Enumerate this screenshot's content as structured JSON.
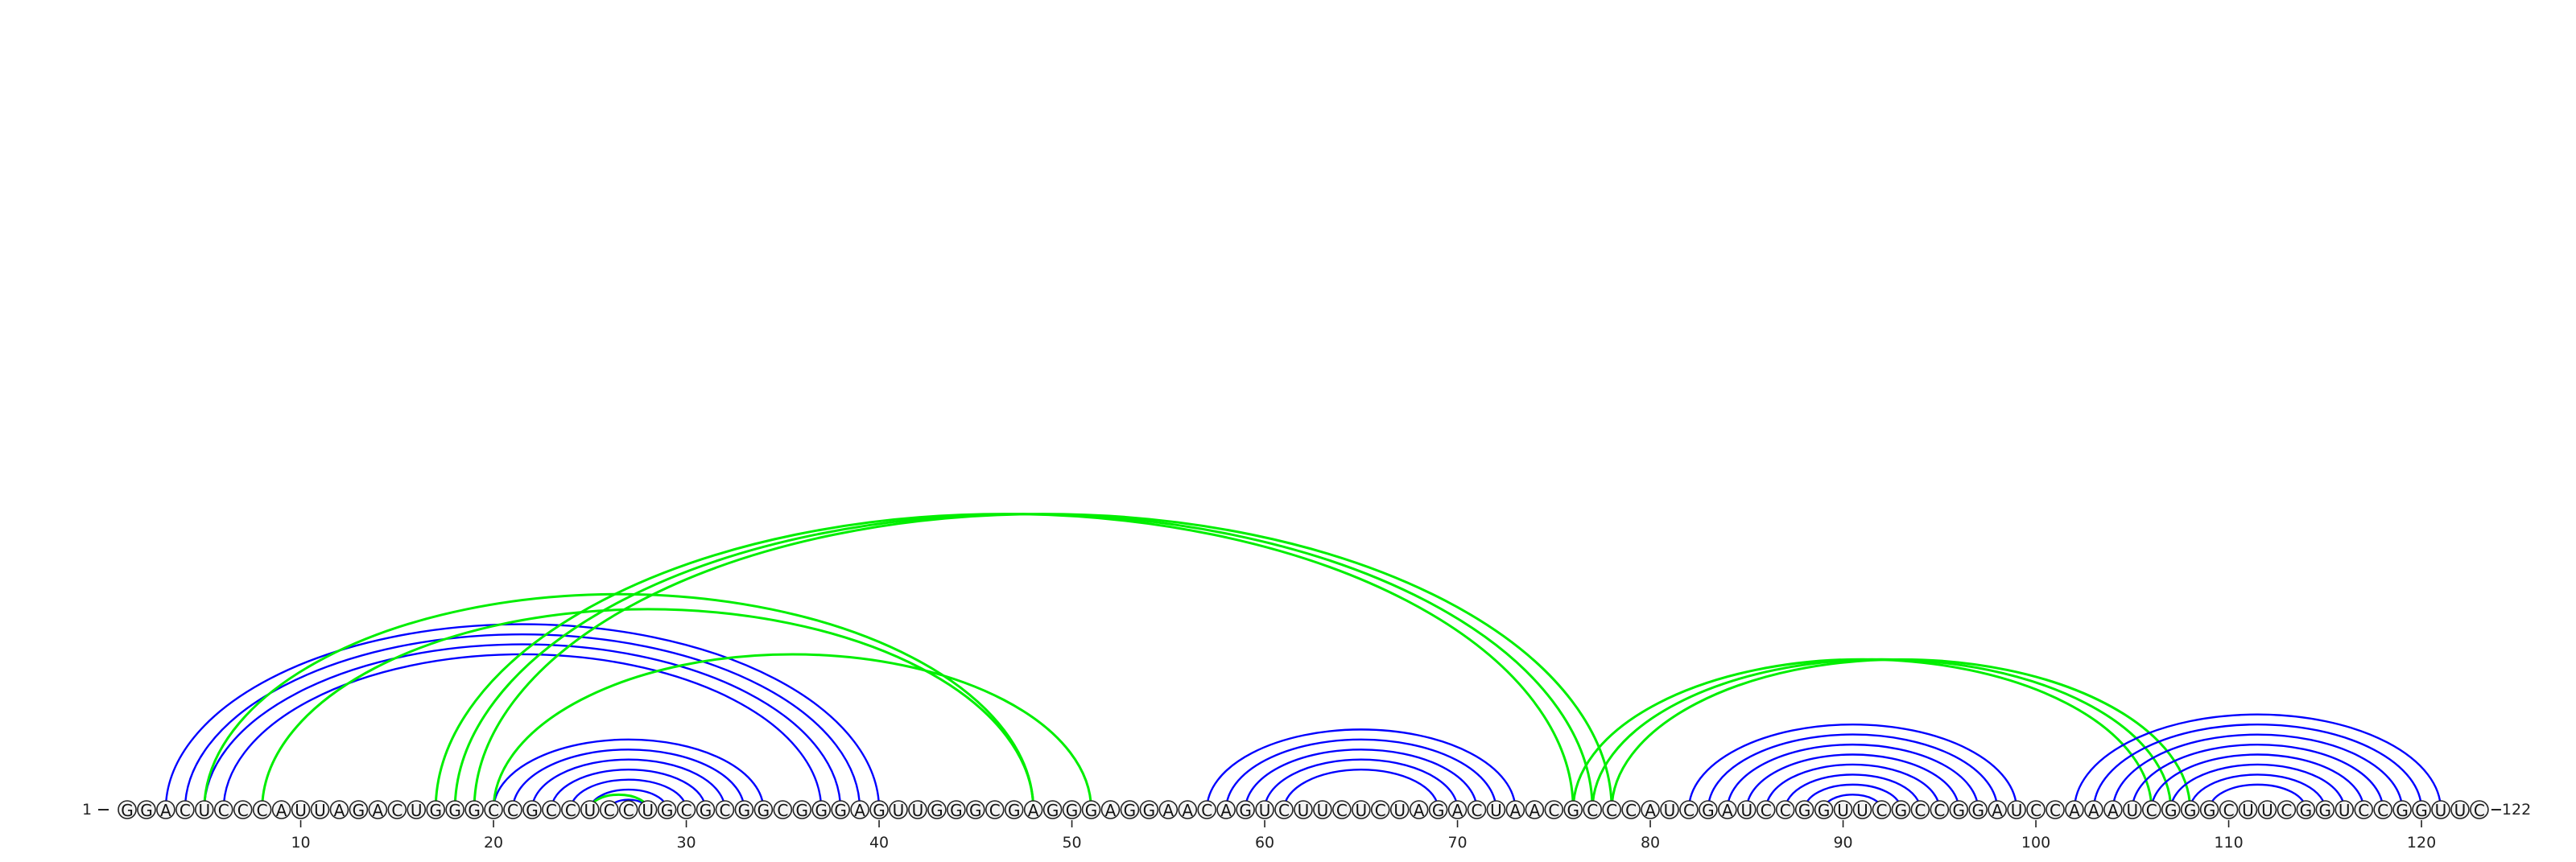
{
  "diagram": {
    "type": "rna-arc-diagram",
    "sequence": "GGACUCCCAUUAGACUGGGCCGCCUCCUGCGCGGCGGGAGUUGGGCGAGGGAGGAACAGUCUUCUCUAGACUAACGCCCAUCGAUCCGGUUCGCCGGAUCCAAAUCGGGCUUCGGUCCGGUUC",
    "start_label": "1",
    "end_label": "122",
    "tick_labels": [
      "10",
      "20",
      "30",
      "40",
      "50",
      "60",
      "70",
      "80",
      "90",
      "100",
      "110",
      "120"
    ],
    "tick_positions": [
      10,
      20,
      30,
      40,
      50,
      60,
      70,
      80,
      90,
      100,
      110,
      120
    ],
    "colors": {
      "blue_arc": "#0000ff",
      "green_arc": "#00ee00",
      "base_fill": "#f4f4f4",
      "base_stroke": "#222222"
    },
    "arcs": [
      {
        "i": 3,
        "j": 40,
        "color": "blue"
      },
      {
        "i": 4,
        "j": 39,
        "color": "blue"
      },
      {
        "i": 5,
        "j": 38,
        "color": "blue"
      },
      {
        "i": 6,
        "j": 37,
        "color": "blue"
      },
      {
        "i": 5,
        "j": 48,
        "color": "green"
      },
      {
        "i": 8,
        "j": 48,
        "color": "green"
      },
      {
        "i": 20,
        "j": 34,
        "color": "blue"
      },
      {
        "i": 21,
        "j": 33,
        "color": "blue"
      },
      {
        "i": 22,
        "j": 32,
        "color": "blue"
      },
      {
        "i": 23,
        "j": 31,
        "color": "blue"
      },
      {
        "i": 24,
        "j": 30,
        "color": "blue"
      },
      {
        "i": 25,
        "j": 29,
        "color": "blue"
      },
      {
        "i": 26,
        "j": 28,
        "color": "blue"
      },
      {
        "i": 25,
        "j": 28,
        "color": "green"
      },
      {
        "i": 17,
        "j": 76,
        "color": "green"
      },
      {
        "i": 18,
        "j": 77,
        "color": "green"
      },
      {
        "i": 19,
        "j": 78,
        "color": "green"
      },
      {
        "i": 20,
        "j": 51,
        "color": "green"
      },
      {
        "i": 57,
        "j": 73,
        "color": "blue"
      },
      {
        "i": 58,
        "j": 72,
        "color": "blue"
      },
      {
        "i": 59,
        "j": 71,
        "color": "blue"
      },
      {
        "i": 60,
        "j": 70,
        "color": "blue"
      },
      {
        "i": 61,
        "j": 69,
        "color": "blue"
      },
      {
        "i": 76,
        "j": 106,
        "color": "green"
      },
      {
        "i": 77,
        "j": 107,
        "color": "green"
      },
      {
        "i": 78,
        "j": 108,
        "color": "green"
      },
      {
        "i": 82,
        "j": 99,
        "color": "blue"
      },
      {
        "i": 83,
        "j": 98,
        "color": "blue"
      },
      {
        "i": 84,
        "j": 97,
        "color": "blue"
      },
      {
        "i": 85,
        "j": 96,
        "color": "blue"
      },
      {
        "i": 86,
        "j": 95,
        "color": "blue"
      },
      {
        "i": 87,
        "j": 94,
        "color": "blue"
      },
      {
        "i": 88,
        "j": 93,
        "color": "blue"
      },
      {
        "i": 89,
        "j": 92,
        "color": "blue"
      },
      {
        "i": 102,
        "j": 121,
        "color": "blue"
      },
      {
        "i": 103,
        "j": 120,
        "color": "blue"
      },
      {
        "i": 104,
        "j": 119,
        "color": "blue"
      },
      {
        "i": 105,
        "j": 118,
        "color": "blue"
      },
      {
        "i": 106,
        "j": 117,
        "color": "blue"
      },
      {
        "i": 107,
        "j": 116,
        "color": "blue"
      },
      {
        "i": 108,
        "j": 115,
        "color": "blue"
      },
      {
        "i": 109,
        "j": 114,
        "color": "blue"
      }
    ]
  }
}
